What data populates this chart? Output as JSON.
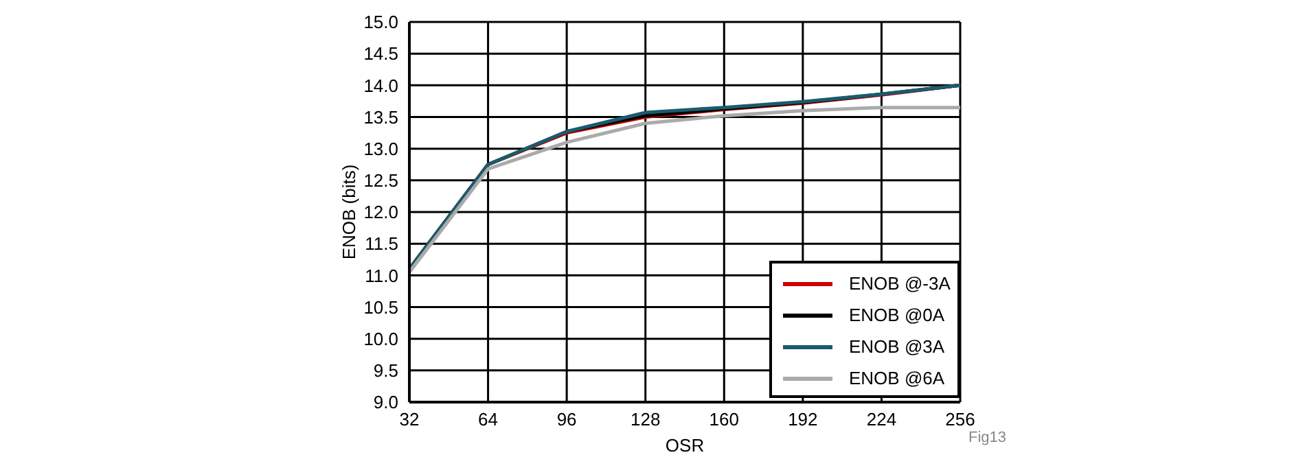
{
  "chart_data": {
    "type": "line",
    "xlabel": "OSR",
    "ylabel": "ENOB (bits)",
    "x": [
      32,
      64,
      96,
      128,
      160,
      192,
      224,
      256
    ],
    "series": [
      {
        "name": "ENOB @-3A",
        "color": "#cc0000",
        "values": [
          11.1,
          12.75,
          13.25,
          13.5,
          13.62,
          13.72,
          13.85,
          14.0
        ]
      },
      {
        "name": "ENOB @0A",
        "color": "#000000",
        "values": [
          11.1,
          12.75,
          13.27,
          13.52,
          13.63,
          13.73,
          13.86,
          14.0
        ]
      },
      {
        "name": "ENOB @3A",
        "color": "#1a5b6e",
        "values": [
          11.1,
          12.75,
          13.27,
          13.57,
          13.65,
          13.74,
          13.86,
          14.0
        ]
      },
      {
        "name": "ENOB @6A",
        "color": "#aaaaaa",
        "values": [
          11.05,
          12.68,
          13.1,
          13.4,
          13.52,
          13.6,
          13.65,
          13.65
        ]
      }
    ],
    "xlim": [
      32,
      256
    ],
    "xticks": [
      32,
      64,
      96,
      128,
      160,
      192,
      224,
      256
    ],
    "ylim": [
      9,
      15
    ],
    "yticks": [
      {
        "value": 9,
        "label": "9.0"
      },
      {
        "value": 9.5,
        "label": "9.5"
      },
      {
        "value": 10,
        "label": "10.0"
      },
      {
        "value": 10.5,
        "label": "10.5"
      },
      {
        "value": 11,
        "label": "11.0"
      },
      {
        "value": 11.5,
        "label": "11.5"
      },
      {
        "value": 12,
        "label": "12.0"
      },
      {
        "value": 12.5,
        "label": "12.5"
      },
      {
        "value": 13,
        "label": "13.0"
      },
      {
        "value": 13.5,
        "label": "13.5"
      },
      {
        "value": 14,
        "label": "14.0"
      },
      {
        "value": 14.5,
        "label": "14.5"
      },
      {
        "value": 15,
        "label": "15.0"
      }
    ],
    "grid": true,
    "legend": "bottom right",
    "marker": "none",
    "line_style": "solid",
    "annotations": [
      "Fig13"
    ]
  }
}
